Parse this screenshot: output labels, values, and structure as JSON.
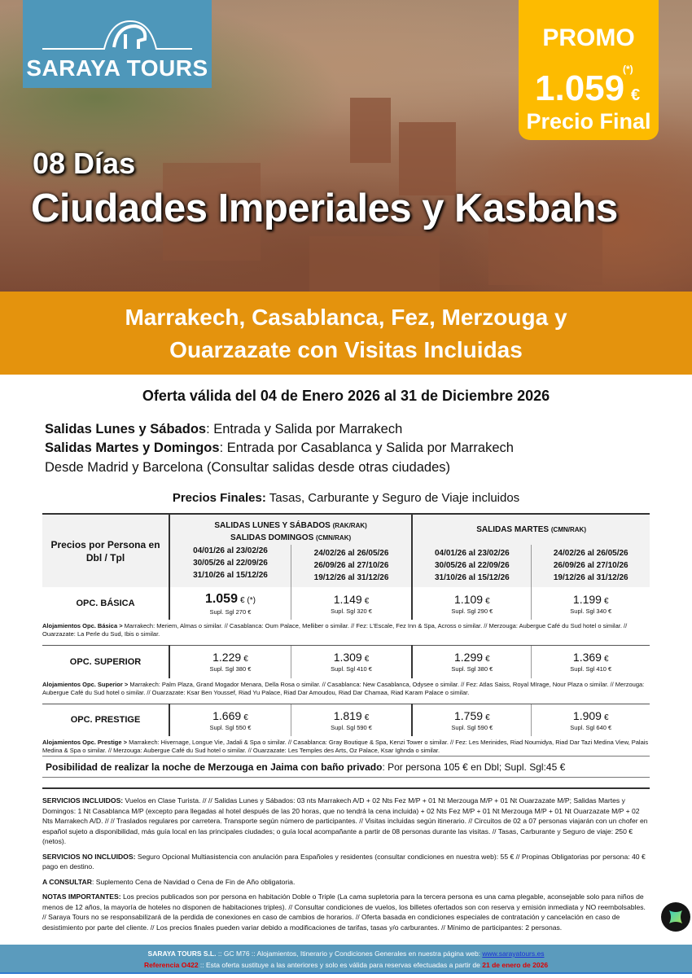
{
  "logo": {
    "name": "SARAYA TOURS"
  },
  "promo": {
    "label": "PROMO",
    "price": "1.059",
    "asterisk": "(*)",
    "currency": "€",
    "final": "Precio Final",
    "color": "#fdbb00"
  },
  "hero": {
    "days": "08 Días",
    "title": "Ciudades Imperiales y Kasbahs"
  },
  "band": {
    "line1": "Marrakech, Casablanca, Fez, Merzouga y",
    "line2": "Ouarzazate con Visitas Incluidas",
    "color": "#e4930d"
  },
  "offer": "Oferta válida del 04 de Enero 2026 al 31 de Diciembre 2026",
  "salidas": [
    {
      "bold": "Salidas Lunes y Sábados",
      "text": ": Entrada y Salida por Marrakech"
    },
    {
      "bold": "Salidas Martes y Domingos",
      "text": ": Entrada por Casablanca y Salida por Marrakech"
    },
    {
      "bold": "",
      "text": "Desde Madrid y Barcelona (Consultar salidas desde otras ciudades)"
    }
  ],
  "precios_finales": {
    "bold": "Precios Finales:",
    "text": " Tasas, Carburante y Seguro de Viaje incluidos"
  },
  "table": {
    "corner": "Precios por Persona en Dbl / Tpl",
    "group1": {
      "l1": "SALIDAS LUNES Y SÁBADOS",
      "l1s": "(RAK/RAK)",
      "l2": "SALIDAS DOMINGOS",
      "l2s": "(CMN/RAK)"
    },
    "group2": {
      "l1": "SALIDAS MARTES",
      "l1s": "(CMN/RAK)"
    },
    "periods": [
      [
        "04/01/26 al 23/02/26",
        "30/05/26 al 22/09/26",
        "31/10/26 al 15/12/26"
      ],
      [
        "24/02/26 al 26/05/26",
        "26/09/26 al 27/10/26",
        "19/12/26 al 31/12/26"
      ],
      [
        "04/01/26 al 23/02/26",
        "30/05/26 al 22/09/26",
        "31/10/26 al 15/12/26"
      ],
      [
        "24/02/26 al 26/05/26",
        "26/09/26 al 27/10/26",
        "19/12/26 al 31/12/26"
      ]
    ],
    "rows": [
      {
        "name": "OPC. BÁSICA",
        "prices": [
          {
            "p": "1.059",
            "c": "€ (*)",
            "s": "Supl. Sgl 270 €"
          },
          {
            "p": "1.149",
            "c": "€",
            "s": "Supl. Sgl 320 €"
          },
          {
            "p": "1.109",
            "c": "€",
            "s": "Supl. Sgl 290 €"
          },
          {
            "p": "1.199",
            "c": "€",
            "s": "Supl. Sgl 340 €"
          }
        ],
        "note_label": "Alojamientos Opc. Básica >",
        "note": " Marrakech: Meriem, Almas o similar. // Casablanca: Oum Palace, Melliber o similar. // Fez: L'Escale, Fez Inn & Spa, Across o similar. // Merzouga: Aubergue Café du Sud hotel o similar. // Ouarzazate: La Perle du Sud, Ibis o similar."
      },
      {
        "name": "OPC. SUPERIOR",
        "prices": [
          {
            "p": "1.229",
            "c": "€",
            "s": "Supl. Sgl 380 €"
          },
          {
            "p": "1.309",
            "c": "€",
            "s": "Supl. Sgl 410 €"
          },
          {
            "p": "1.299",
            "c": "€",
            "s": "Supl. Sgl 380 €"
          },
          {
            "p": "1.369",
            "c": "€",
            "s": "Supl. Sgl 410 €"
          }
        ],
        "note_label": "Alojamientos Opc. Superior >",
        "note": " Marrakech: Palm Plaza, Grand Mogador Menara, Della Rosa o similar. // Casablanca: New Casablanca, Odysee o similar. // Fez: Atlas Saiss, Royal MIrage, Nour Plaza o similar. // Merzouga: Aubergue Café du Sud hotel o similar. // Ouarzazate: Ksar Ben Youssef, Riad Yu Palace, Riad Dar Amoudou, Riad Dar Chamaa, Riad Karam Palace o similar."
      },
      {
        "name": "OPC. PRESTIGE",
        "prices": [
          {
            "p": "1.669",
            "c": "€",
            "s": "Supl. Sgl 550 €"
          },
          {
            "p": "1.819",
            "c": "€",
            "s": "Supl. Sgl 590 €"
          },
          {
            "p": "1.759",
            "c": "€",
            "s": "Supl. Sgl 590 €"
          },
          {
            "p": "1.909",
            "c": "€",
            "s": "Supl. Sgl 640 €"
          }
        ],
        "note_label": "Alojamientos Opc. Prestige >",
        "note": " Marrakech: Hivernage, Longue Vie, Jadali & Spa o similar. // Casablanca: Gray Boutique & Spa, Kenzi Tower o similar. // Fez: Les Merinides, Riad Noumidya, Riad Dar Tazi Medina View, Palais Medina & Spa o similar. // Merzouga: Aubergue Café du Sud hotel o similar.  // Ouarzazate: Les Temples des Arts, Oz Palace, Ksar Ighnda o similar."
      }
    ]
  },
  "jaima": {
    "bold": "Posibilidad de realizar la noche de Merzouga en Jaima con baño privado",
    "text": ": Por persona 105 € en Dbl; Supl. Sgl:45 €"
  },
  "services": [
    {
      "label": "SERVICIOS INCLUIDOS:",
      "text": " Vuelos en Clase Turista. // // Salidas Lunes y Sábados: 03 nts Marrakech A/D + 02 Nts Fez M/P + 01 Nt Merzouga M/P + 01 Nt Ouarzazate M/P; Salidas Martes y Domingos: 1 Nt Casablanca M/P (excepto para llegadas al hotel después de las 20 horas, que no tendrá la cena incluida) + 02 Nts Fez M/P + 01 Nt Merzouga M/P + 01 Nt Ouarzazate M/P + 02 Nts Marrakech A/D. // // Traslados regulares por carretera. Transporte según número de participantes. // Visitas incluidas según itinerario. // Circuitos de 02 a 07 personas viajarán con un chofer en español sujeto a disponibilidad, más guía local en las principales ciudades; o guía local acompañante a partir de 08 personas durante las visitas. // Tasas, Carburante y Seguro de viaje: 250 € (netos)."
    },
    {
      "label": "SERVICIOS NO INCLUIDOS:",
      "text": " Seguro Opcional Multiasistencia con anulación para Españoles y residentes (consultar condiciones en nuestra web): 55 € // Propinas Obligatorias por persona: 40 €  pago en destino."
    },
    {
      "label": "A CONSULTAR",
      "text": ": Suplemento Cena de Navidad o Cena de Fin de Año obligatoria."
    },
    {
      "label": "NOTAS IMPORTANTES:",
      "text": " Los precios publicados son por persona en habitación Doble o Triple (La cama supletoria para la tercera persona es una cama plegable, aconsejable solo para niños de menos de 12 años, la mayoría de hoteles no disponen de habitaciones triples). // Consultar condiciones de vuelos, los billetes ofertados son con reserva y emisión inmediata y NO reembolsables. // Saraya Tours no se responsabilizará de la perdida de conexiones en caso de cambios de horarios. // Oferta basada en condiciones especiales de contratación y cancelación en caso de desistimiento por parte del cliente. // Los precios finales pueden variar debido a modificaciones de tarifas, tasas y/o carburantes. // Mínimo de participantes: 2 personas."
    }
  ],
  "footer": {
    "company": "SARAYA TOURS S.L.",
    "line1": " :: GC M76 ::  Alojamientos, Itinerario y Condiciones Generales en nuestra página web:  ",
    "url": "www.sarayatours.es",
    "ref": "Referencia O422",
    "line2": " :: Esta oferta sustituye a las anteriores y solo es válida para reservas efectuadas a partir de ",
    "date": "21 de enero de 2026",
    "color": "#5b9bbd"
  }
}
